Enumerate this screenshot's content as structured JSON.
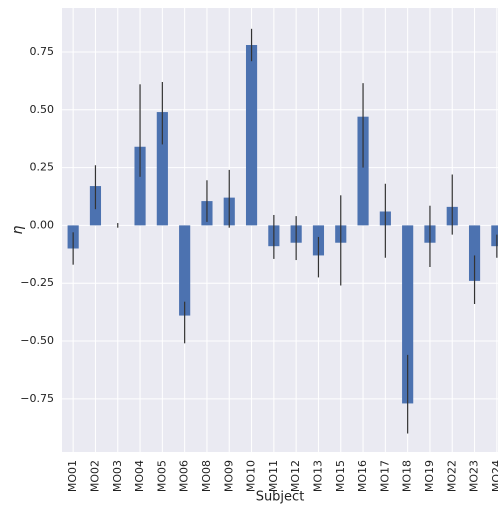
{
  "chart_data": {
    "type": "bar",
    "x_label": "Subject",
    "y_label": "η",
    "categories": [
      "MO01",
      "MO02",
      "MO03",
      "MO04",
      "MO05",
      "MO06",
      "MO08",
      "MO09",
      "MO10",
      "MO11",
      "MO12",
      "MO13",
      "MO15",
      "MO16",
      "MO17",
      "MO18",
      "MO19",
      "MO22",
      "MO23",
      "MO24"
    ],
    "values": [
      -0.1,
      0.17,
      0.0,
      0.34,
      0.49,
      -0.39,
      0.105,
      0.12,
      0.78,
      -0.09,
      -0.075,
      -0.13,
      -0.075,
      0.47,
      0.06,
      -0.77,
      -0.075,
      0.08,
      -0.24,
      -0.09
    ],
    "ci_low": [
      -0.17,
      0.07,
      -0.01,
      0.21,
      0.35,
      -0.51,
      0.015,
      -0.01,
      0.71,
      -0.145,
      -0.15,
      -0.225,
      -0.26,
      0.25,
      -0.14,
      -0.9,
      -0.18,
      -0.04,
      -0.34,
      -0.14
    ],
    "ci_high": [
      -0.03,
      0.26,
      0.01,
      0.61,
      0.62,
      -0.33,
      0.195,
      0.24,
      0.85,
      0.045,
      0.04,
      -0.05,
      0.13,
      0.615,
      0.18,
      -0.56,
      0.085,
      0.22,
      -0.13,
      -0.04
    ],
    "color": "#4c72b0",
    "error_color": "#333333",
    "ylim": [
      -0.98,
      0.94
    ],
    "yticks": [
      {
        "value": -0.75,
        "label": "−0.75"
      },
      {
        "value": -0.5,
        "label": "−0.50"
      },
      {
        "value": -0.25,
        "label": "−0.25"
      },
      {
        "value": 0,
        "label": "0.00"
      },
      {
        "value": 0.25,
        "label": "0.25"
      },
      {
        "value": 0.5,
        "label": "0.50"
      },
      {
        "value": 0.75,
        "label": "0.75"
      }
    ],
    "grid": true
  }
}
